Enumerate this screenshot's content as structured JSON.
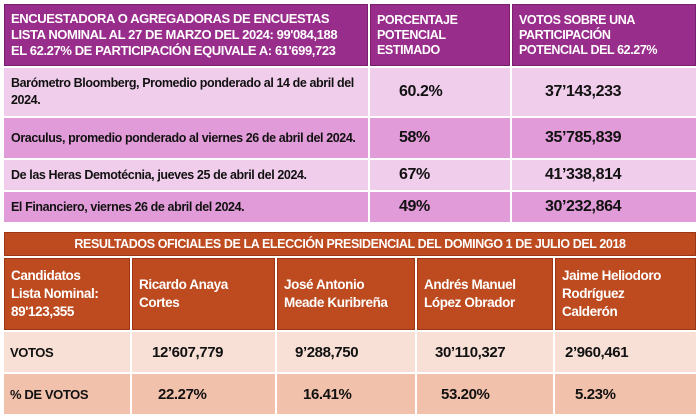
{
  "polls_table": {
    "header": {
      "col1_lines": [
        "ENCUESTADORA O AGREGADORAS DE ENCUESTAS",
        "LISTA NOMINAL AL 27 DE MARZO DEL 2024: 99'084,188",
        "EL 62.27% DE PARTICIPACIÓN EQUIVALE A: 61'699,723"
      ],
      "col2_lines": [
        "PORCENTAJE",
        "POTENCIAL",
        "ESTIMADO"
      ],
      "col3_lines": [
        "VOTOS SOBRE UNA",
        "PARTICIPACIÓN",
        "POTENCIAL DEL  62.27%"
      ]
    },
    "rows": [
      {
        "pollster": "Barómetro Bloomberg, Promedio ponderado al 14 de abril del 2024.",
        "percent": "60.2%",
        "votes": "37’143,233"
      },
      {
        "pollster": "Oraculus, promedio ponderado al viernes 26 de abril del 2024.",
        "percent": "58%",
        "votes": "35’785,839"
      },
      {
        "pollster": "De las Heras Demotécnia, jueves 25 de abril del 2024.",
        "percent": "67%",
        "votes": "41’338,814"
      },
      {
        "pollster": "El Financiero, viernes 26 de abril del 2024.",
        "percent": "49%",
        "votes": "30’232,864"
      }
    ]
  },
  "results_table": {
    "title": "RESULTADOS OFICIALES DE LA ELECCIÓN PRESIDENCIAL DEL DOMINGO 1 DE JULIO DEL 2018",
    "label_header_lines": [
      "Candidatos",
      "Lista Nominal:",
      "89'123,355"
    ],
    "candidates": [
      {
        "name_lines": [
          "Ricardo Anaya",
          "Cortes"
        ],
        "votes": "12’607,779",
        "percent": "22.27%"
      },
      {
        "name_lines": [
          "José Antonio",
          "Meade Kuribreña"
        ],
        "votes": "9’288,750",
        "percent": "16.41%"
      },
      {
        "name_lines": [
          "Andrés Manuel",
          "López Obrador"
        ],
        "votes": "30’110,327",
        "percent": "53.20%"
      },
      {
        "name_lines": [
          "Jaime Heliodoro",
          "Rodríguez",
          "Calderón"
        ],
        "votes": "2’960,461",
        "percent": "5.23%"
      }
    ],
    "votes_label": "VOTOS",
    "percent_label": "% DE VOTOS"
  },
  "colors": {
    "poll_header": "#992d8c",
    "poll_row_light": "#f1cdec",
    "poll_row_dark": "#e29bd9",
    "results_header": "#bd4b1f",
    "results_votes_row": "#f8e0d6",
    "results_percent_row": "#f2c1ac"
  }
}
